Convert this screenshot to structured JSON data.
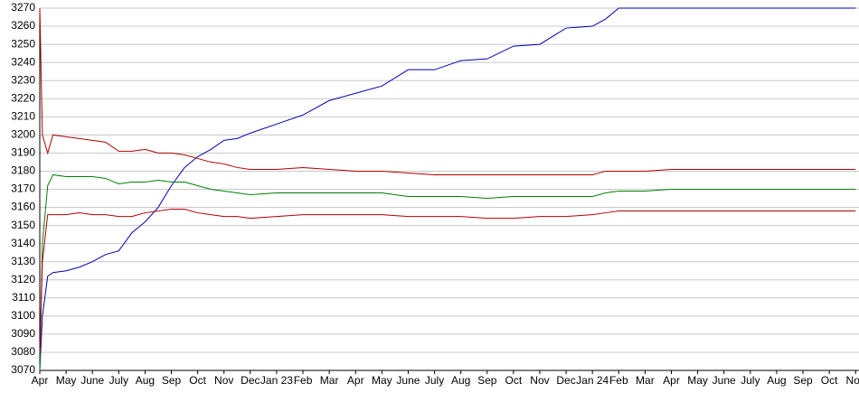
{
  "chart_data": {
    "type": "line",
    "x": [
      0,
      0.1,
      0.3,
      0.5,
      1,
      1.5,
      2,
      2.5,
      3,
      3.5,
      4,
      4.5,
      5,
      5.5,
      6,
      6.5,
      7,
      7.5,
      8,
      9,
      10,
      11,
      12,
      13,
      14,
      15,
      16,
      17,
      18,
      19,
      20,
      21,
      21.5,
      22,
      23,
      24,
      25,
      26,
      27,
      28,
      29,
      30,
      31
    ],
    "series": [
      {
        "color": "#0000b0",
        "values": [
          3070,
          3100,
          3122,
          3124,
          3125,
          3127,
          3130,
          3134,
          3136,
          3146,
          3152,
          3160,
          3172,
          3182,
          3188,
          3192,
          3197,
          3198,
          3201,
          3206,
          3211,
          3219,
          3223,
          3227,
          3236,
          3236,
          3241,
          3242,
          3249,
          3250,
          3259,
          3260,
          3264,
          3270,
          3270,
          3270,
          3270,
          3270,
          3270,
          3270,
          3270,
          3270,
          3270
        ]
      },
      {
        "color": "#b00000",
        "values": [
          3270,
          3200,
          3190,
          3200,
          3199,
          3198,
          3197,
          3196,
          3191,
          3191,
          3192,
          3190,
          3190,
          3189,
          3187,
          3185,
          3184,
          3182,
          3181,
          3181,
          3182,
          3181,
          3180,
          3180,
          3179,
          3178,
          3178,
          3178,
          3178,
          3178,
          3178,
          3178,
          3180,
          3180,
          3180,
          3181,
          3181,
          3181,
          3181,
          3181,
          3181,
          3181,
          3181
        ]
      },
      {
        "color": "#008000",
        "values": [
          3070,
          3140,
          3172,
          3178,
          3177,
          3177,
          3177,
          3176,
          3173,
          3174,
          3174,
          3175,
          3174,
          3174,
          3172,
          3170,
          3169,
          3168,
          3167,
          3168,
          3168,
          3168,
          3168,
          3168,
          3166,
          3166,
          3166,
          3165,
          3166,
          3166,
          3166,
          3166,
          3168,
          3169,
          3169,
          3170,
          3170,
          3170,
          3170,
          3170,
          3170,
          3170,
          3170
        ]
      },
      {
        "color": "#b00000",
        "values": [
          3080,
          3130,
          3156,
          3156,
          3156,
          3157,
          3156,
          3156,
          3155,
          3155,
          3157,
          3158,
          3159,
          3159,
          3157,
          3156,
          3155,
          3155,
          3154,
          3155,
          3156,
          3156,
          3156,
          3156,
          3155,
          3155,
          3155,
          3154,
          3154,
          3155,
          3155,
          3156,
          3157,
          3158,
          3158,
          3158,
          3158,
          3158,
          3158,
          3158,
          3158,
          3158,
          3158
        ]
      }
    ],
    "xlim": [
      0,
      31.13
    ],
    "xticks": [
      {
        "value": 0,
        "label": "Apr"
      },
      {
        "value": 1,
        "label": "May"
      },
      {
        "value": 2,
        "label": "June"
      },
      {
        "value": 3,
        "label": "July"
      },
      {
        "value": 4,
        "label": "Aug"
      },
      {
        "value": 5,
        "label": "Sep"
      },
      {
        "value": 6,
        "label": "Oct"
      },
      {
        "value": 7,
        "label": "Nov"
      },
      {
        "value": 8,
        "label": "Dec"
      },
      {
        "value": 9,
        "label": "Jan 23"
      },
      {
        "value": 10,
        "label": "Feb"
      },
      {
        "value": 11,
        "label": "Mar"
      },
      {
        "value": 12,
        "label": "Apr"
      },
      {
        "value": 13,
        "label": "May"
      },
      {
        "value": 14,
        "label": "June"
      },
      {
        "value": 15,
        "label": "July"
      },
      {
        "value": 16,
        "label": "Aug"
      },
      {
        "value": 17,
        "label": "Sep"
      },
      {
        "value": 18,
        "label": "Oct"
      },
      {
        "value": 19,
        "label": "Nov"
      },
      {
        "value": 20,
        "label": "Dec"
      },
      {
        "value": 21,
        "label": "Jan 24"
      },
      {
        "value": 22,
        "label": "Feb"
      },
      {
        "value": 23,
        "label": "Mar"
      },
      {
        "value": 24,
        "label": "Apr"
      },
      {
        "value": 25,
        "label": "May"
      },
      {
        "value": 26,
        "label": "June"
      },
      {
        "value": 27,
        "label": "July"
      },
      {
        "value": 28,
        "label": "Aug"
      },
      {
        "value": 29,
        "label": "Sep"
      },
      {
        "value": 30,
        "label": "Oct"
      },
      {
        "value": 31,
        "label": "Nov"
      }
    ],
    "ylim": [
      3070,
      3270
    ],
    "yticks": [
      3070,
      3080,
      3090,
      3100,
      3110,
      3120,
      3130,
      3140,
      3150,
      3160,
      3170,
      3180,
      3190,
      3200,
      3210,
      3220,
      3230,
      3240,
      3250,
      3260,
      3270
    ],
    "grid": true
  }
}
